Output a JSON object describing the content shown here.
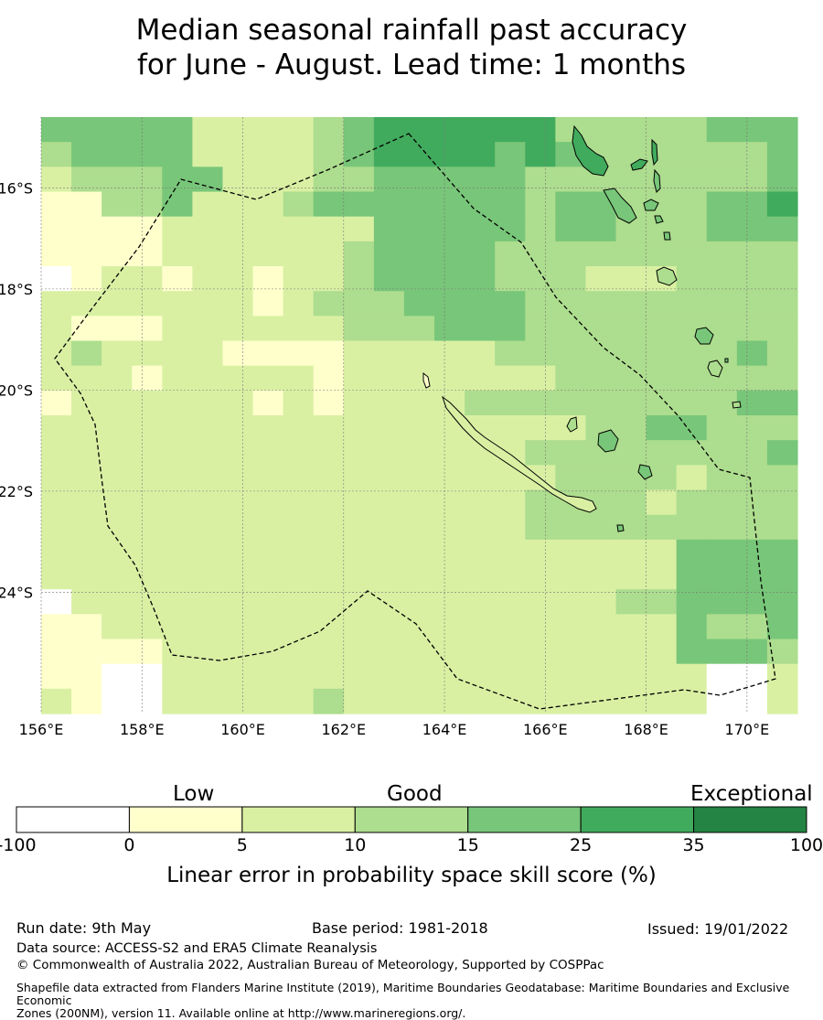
{
  "title_line1": "Median seasonal rainfall past accuracy",
  "title_line2": "for June - August. Lead time: 1 months",
  "map": {
    "lon_range": [
      156,
      171
    ],
    "lat_range": [
      -26.4,
      -14.6
    ],
    "lon_ticks": [
      "156°E",
      "158°E",
      "160°E",
      "162°E",
      "164°E",
      "166°E",
      "168°E",
      "170°E"
    ],
    "lat_ticks": [
      "16°S",
      "18°S",
      "20°S",
      "22°S",
      "24°S"
    ],
    "grid": true,
    "boundary_line": "dashed",
    "colors": [
      "#ffffff",
      "#ffffcc",
      "#d9f0a3",
      "#addd8e",
      "#78c679",
      "#41ab5d",
      "#238443"
    ],
    "cell_classes": [
      "4444422223455555533333444",
      "3444422223455554543333334",
      "2333442223344444333333334",
      "1133422234444444344333445",
      "1111222222244444344333444",
      "1111222222344443333333333",
      "0122122122344443332223333",
      "2222222123334444333333333",
      "2111222222333444333333333",
      "2322221111222223333333343",
      "2221222221222222233333333",
      "1222222121222233333333344",
      "2222222222222222223344333",
      "2222222222222222333333334",
      "2222222222222222233332333",
      "2222222222222222333323333",
      "2222222222222222333333333",
      "2222222222222222222224444",
      "2222222222222222222224444",
      "0222222222222222222334444",
      "1122222222222222222224334",
      "1111222222222222222224443",
      "1100222222222222222222002",
      "2100222223222222222222002"
    ],
    "island_shapes": "coastline"
  },
  "colorbar": {
    "categories": [
      "Low",
      "Good",
      "Exceptional"
    ],
    "ticks": [
      "-100",
      "0",
      "5",
      "10",
      "15",
      "25",
      "35",
      "100"
    ],
    "colors": [
      "#ffffff",
      "#ffffcc",
      "#d9f0a3",
      "#addd8e",
      "#78c679",
      "#41ab5d",
      "#238443"
    ],
    "label": "Linear error in probability space skill score (%)"
  },
  "footer": {
    "run_date": "Run date: 9th May",
    "base_period": "Base period: 1981-2018",
    "issued": "Issued: 19/01/2022",
    "data_source": "Data source: ACCESS-S2 and ERA5 Climate Reanalysis",
    "copyright": "© Commonwealth of Australia 2022, Australian Bureau of Meteorology, Supported by COSPPac",
    "shapefile_line1": "Shapefile data extracted from Flanders Marine Institute (2019), Maritime Boundaries Geodatabase: Maritime Boundaries and Exclusive Economic",
    "shapefile_line2": "Zones (200NM), version 11. Available online at http://www.marineregions.org/."
  }
}
